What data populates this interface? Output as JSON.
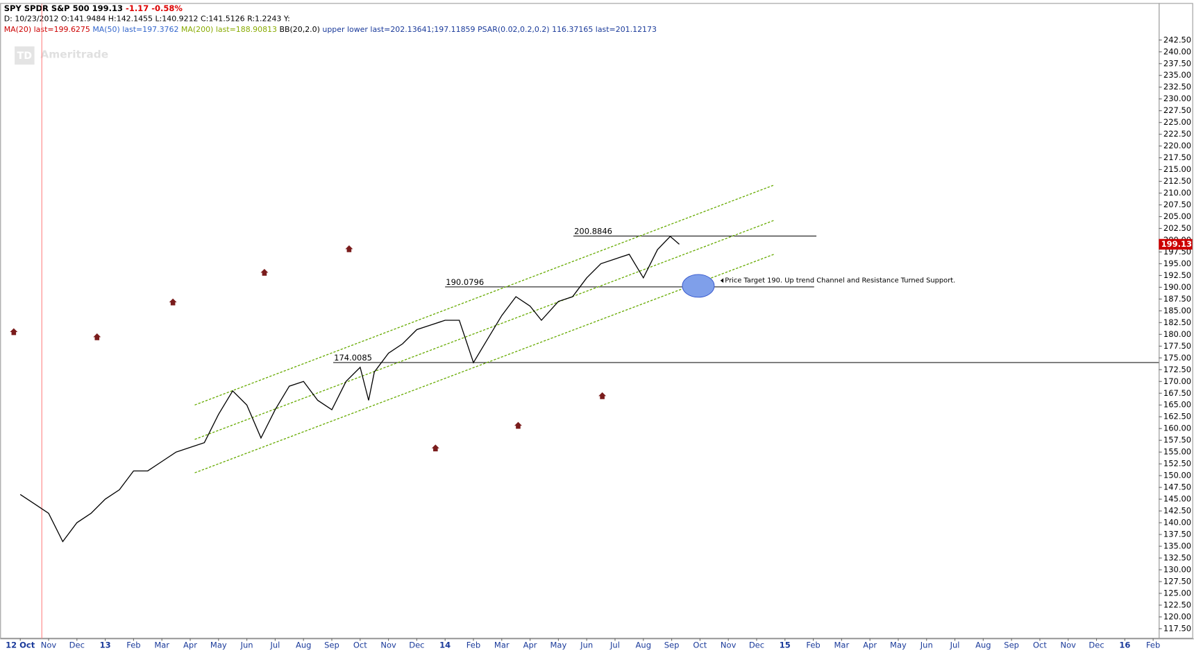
{
  "chart_data": {
    "type": "line",
    "header": {
      "symbol": "SPY SPDR S&P 500",
      "last": "199.13",
      "change": "-1.17",
      "change_pct": "-0.58%",
      "ohlc": "D: 10/23/2012 O:141.9484 H:142.1455 L:140.9212 C:141.5126 R:1.2243 Y:"
    },
    "legend": [
      {
        "text": "MA(20)",
        "color": "#cc0000"
      },
      {
        "text": "last=199.6275",
        "color": "#cc0000"
      },
      {
        "text": "MA(50)",
        "color": "#3366cc"
      },
      {
        "text": "last=197.3762",
        "color": "#3366cc"
      },
      {
        "text": "MA(200)",
        "color": "#88aa00"
      },
      {
        "text": "last=188.90813",
        "color": "#88aa00"
      },
      {
        "text": "BB(20,2.0)",
        "color": "#000000"
      },
      {
        "text": "upper",
        "color": "#1a3a9a"
      },
      {
        "text": "lower",
        "color": "#1a3a9a"
      },
      {
        "text": "last=202.13641;197.11859",
        "color": "#1a3a9a"
      },
      {
        "text": "PSAR(0.02,0.2,0.2)",
        "color": "#1a3a9a"
      },
      {
        "text": "116.37165 last=201.12173",
        "color": "#1a3a9a"
      }
    ],
    "watermark": "Ameritrade",
    "watermark_logo": "TD",
    "series": [
      {
        "name": "SPY",
        "color": "#000000",
        "x": [
          0,
          0.5,
          1,
          1.5,
          2,
          2.5,
          3,
          3.5,
          4,
          4.5,
          5,
          5.5,
          6,
          6.5,
          7,
          7.5,
          8,
          8.5,
          9,
          9.5,
          10,
          10.5,
          11,
          11.5,
          12,
          12.3,
          12.5,
          13,
          13.5,
          14,
          14.5,
          15,
          15.5,
          16,
          16.5,
          17,
          17.5,
          18,
          18.4,
          19,
          19.5,
          20,
          20.5,
          21,
          21.5,
          22,
          22.5,
          22.95,
          23.27
        ],
        "values": [
          146,
          144,
          142,
          136,
          140,
          142,
          145,
          147,
          151,
          151,
          153,
          155,
          156,
          157,
          163,
          168,
          165,
          158,
          164,
          169,
          170,
          166,
          164,
          170,
          173,
          166,
          172,
          176,
          178,
          181,
          182,
          183,
          183,
          174,
          179,
          184,
          188,
          186,
          183,
          187,
          188,
          192,
          195,
          196,
          197,
          192,
          198,
          200.8,
          199.13
        ]
      }
    ],
    "last_price": 199.13,
    "last_price_label": "199.13",
    "psar": {
      "color": "#7a1c1c",
      "x": [
        -0.23,
        2.71,
        5.39,
        8.62,
        11.61,
        14.66,
        17.58,
        20.55
      ],
      "values": [
        180.5,
        179.4,
        186.8,
        193.1,
        198.1,
        155.8,
        160.6,
        166.9
      ]
    },
    "trend_lines": {
      "color": "#66aa00",
      "lines": [
        {
          "x": [
            6.16,
            26.61
          ],
          "values": [
            165.0,
            211.7
          ]
        },
        {
          "x": [
            6.16,
            26.61
          ],
          "values": [
            157.7,
            204.2
          ]
        },
        {
          "x": [
            6.16,
            26.61
          ],
          "values": [
            150.6,
            197.0
          ]
        }
      ]
    },
    "levels": [
      {
        "value": 200.8846,
        "x": [
          19.53,
          28.11
        ]
      },
      {
        "value": 190.0796,
        "x": [
          15.0,
          28.03
        ]
      },
      {
        "value": 174.0085,
        "x": [
          11.05,
          40.2
        ]
      }
    ],
    "target": {
      "x": 23.94,
      "value": 190.3,
      "color": "#7f9fea"
    },
    "annotation": "Price Target 190. Up trend Channel and Resistance Turned Support.",
    "cursor_x": 0.76,
    "xlim": [
      -0.71,
      40.2
    ],
    "ylim": [
      115.4,
      250.2
    ],
    "xticks": [
      {
        "value": 0,
        "label": "12 Oct"
      },
      {
        "value": 1,
        "label": "Nov"
      },
      {
        "value": 2,
        "label": "Dec"
      },
      {
        "value": 3,
        "label": "13"
      },
      {
        "value": 4,
        "label": "Feb"
      },
      {
        "value": 5,
        "label": "Mar"
      },
      {
        "value": 6,
        "label": "Apr"
      },
      {
        "value": 7,
        "label": "May"
      },
      {
        "value": 8,
        "label": "Jun"
      },
      {
        "value": 9,
        "label": "Jul"
      },
      {
        "value": 10,
        "label": "Aug"
      },
      {
        "value": 11,
        "label": "Sep"
      },
      {
        "value": 12,
        "label": "Oct"
      },
      {
        "value": 13,
        "label": "Nov"
      },
      {
        "value": 14,
        "label": "Dec"
      },
      {
        "value": 15,
        "label": "14"
      },
      {
        "value": 16,
        "label": "Feb"
      },
      {
        "value": 17,
        "label": "Mar"
      },
      {
        "value": 18,
        "label": "Apr"
      },
      {
        "value": 19,
        "label": "May"
      },
      {
        "value": 20,
        "label": "Jun"
      },
      {
        "value": 21,
        "label": "Jul"
      },
      {
        "value": 22,
        "label": "Aug"
      },
      {
        "value": 23,
        "label": "Sep"
      },
      {
        "value": 24,
        "label": "Oct"
      },
      {
        "value": 25,
        "label": "Nov"
      },
      {
        "value": 26,
        "label": "Dec"
      },
      {
        "value": 27,
        "label": "15"
      },
      {
        "value": 28,
        "label": "Feb"
      },
      {
        "value": 29,
        "label": "Mar"
      },
      {
        "value": 30,
        "label": "Apr"
      },
      {
        "value": 31,
        "label": "May"
      },
      {
        "value": 32,
        "label": "Jun"
      },
      {
        "value": 33,
        "label": "Jul"
      },
      {
        "value": 34,
        "label": "Aug"
      },
      {
        "value": 35,
        "label": "Sep"
      },
      {
        "value": 36,
        "label": "Oct"
      },
      {
        "value": 37,
        "label": "Nov"
      },
      {
        "value": 38,
        "label": "Dec"
      },
      {
        "value": 39,
        "label": "16"
      },
      {
        "value": 40,
        "label": "Feb"
      }
    ],
    "yticks": [
      {
        "value": 117.5,
        "label": "117.50"
      },
      {
        "value": 120,
        "label": "120.00"
      },
      {
        "value": 122.5,
        "label": "122.50"
      },
      {
        "value": 125,
        "label": "125.00"
      },
      {
        "value": 127.5,
        "label": "127.50"
      },
      {
        "value": 130,
        "label": "130.00"
      },
      {
        "value": 132.5,
        "label": "132.50"
      },
      {
        "value": 135,
        "label": "135.00"
      },
      {
        "value": 137.5,
        "label": "137.50"
      },
      {
        "value": 140,
        "label": "140.00"
      },
      {
        "value": 142.5,
        "label": "142.50"
      },
      {
        "value": 145,
        "label": "145.00"
      },
      {
        "value": 147.5,
        "label": "147.50"
      },
      {
        "value": 150,
        "label": "150.00"
      },
      {
        "value": 152.5,
        "label": "152.50"
      },
      {
        "value": 155,
        "label": "155.00"
      },
      {
        "value": 157.5,
        "label": "157.50"
      },
      {
        "value": 160,
        "label": "160.00"
      },
      {
        "value": 162.5,
        "label": "162.50"
      },
      {
        "value": 165,
        "label": "165.00"
      },
      {
        "value": 167.5,
        "label": "167.50"
      },
      {
        "value": 170,
        "label": "170.00"
      },
      {
        "value": 172.5,
        "label": "172.50"
      },
      {
        "value": 175,
        "label": "175.00"
      },
      {
        "value": 177.5,
        "label": "177.50"
      },
      {
        "value": 180,
        "label": "180.00"
      },
      {
        "value": 182.5,
        "label": "182.50"
      },
      {
        "value": 185,
        "label": "185.00"
      },
      {
        "value": 187.5,
        "label": "187.50"
      },
      {
        "value": 190,
        "label": "190.00"
      },
      {
        "value": 192.5,
        "label": "192.50"
      },
      {
        "value": 195,
        "label": "195.00"
      },
      {
        "value": 197.5,
        "label": "197.50"
      },
      {
        "value": 200,
        "label": "200.00"
      },
      {
        "value": 202.5,
        "label": "202.50"
      },
      {
        "value": 205,
        "label": "205.00"
      },
      {
        "value": 207.5,
        "label": "207.50"
      },
      {
        "value": 210,
        "label": "210.00"
      },
      {
        "value": 212.5,
        "label": "212.50"
      },
      {
        "value": 215,
        "label": "215.00"
      },
      {
        "value": 217.5,
        "label": "217.50"
      },
      {
        "value": 220,
        "label": "220.00"
      },
      {
        "value": 222.5,
        "label": "222.50"
      },
      {
        "value": 225,
        "label": "225.00"
      },
      {
        "value": 227.5,
        "label": "227.50"
      },
      {
        "value": 230,
        "label": "230.00"
      },
      {
        "value": 232.5,
        "label": "232.50"
      },
      {
        "value": 235,
        "label": "235.00"
      },
      {
        "value": 237.5,
        "label": "237.50"
      },
      {
        "value": 240,
        "label": "240.00"
      },
      {
        "value": 242.5,
        "label": "242.50"
      }
    ]
  }
}
